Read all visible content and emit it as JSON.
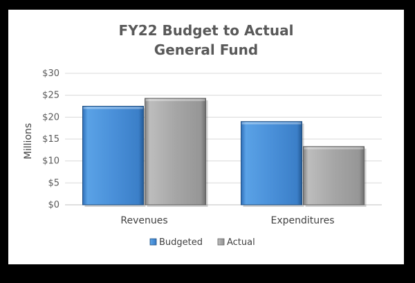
{
  "chart_data": {
    "type": "bar",
    "title": [
      "FY22 Budget to Actual",
      "General Fund"
    ],
    "ylabel": "Millions",
    "xlabel": "",
    "categories": [
      "Revenues",
      "Expenditures"
    ],
    "series": [
      {
        "name": "Budgeted",
        "values": [
          22.5,
          19.0
        ],
        "color": "#4a90d9"
      },
      {
        "name": "Actual",
        "values": [
          24.3,
          13.3
        ],
        "color": "#a6a6a6"
      }
    ],
    "ylim": [
      0,
      30
    ],
    "yticks": [
      0,
      5,
      10,
      15,
      20,
      25,
      30
    ],
    "ytick_labels": [
      "$0",
      "$5",
      "$10",
      "$15",
      "$20",
      "$25",
      "$30"
    ],
    "grid": true,
    "legend_position": "bottom"
  }
}
